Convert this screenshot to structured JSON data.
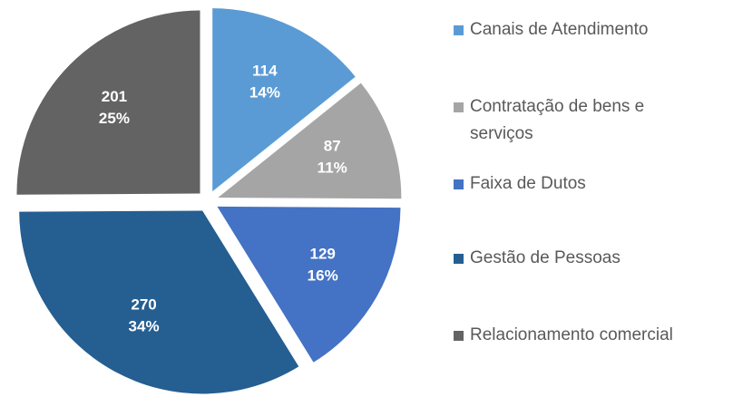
{
  "chart_data": {
    "type": "pie",
    "categories": [
      "Canais de Atendimento",
      "Contratação de bens e serviços",
      "Faixa de Dutos",
      "Gestão de Pessoas",
      "Relacionamento comercial"
    ],
    "values": [
      114,
      87,
      129,
      270,
      201
    ],
    "percent_labels": [
      "14%",
      "11%",
      "16%",
      "34%",
      "25%"
    ],
    "colors": [
      "#5b9bd5",
      "#a5a5a5",
      "#4472c4",
      "#255e91",
      "#636363"
    ],
    "legend": "right"
  }
}
